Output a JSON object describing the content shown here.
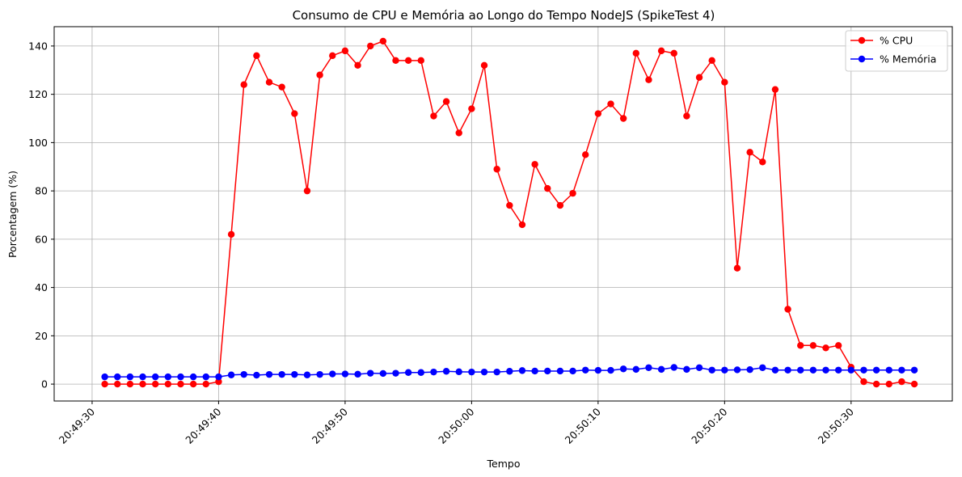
{
  "chart_data": {
    "type": "line",
    "title": "Consumo de CPU e Memória ao Longo do Tempo NodeJS (SpikeTest 4)",
    "xlabel": "Tempo",
    "ylabel": "Porcentagem (%)",
    "x_start": "20:49:31",
    "x_step_seconds": 1,
    "xlim": [
      "20:49:27",
      "20:50:38"
    ],
    "ylim": [
      -7,
      148
    ],
    "x_ticks": [
      "20:49:30",
      "20:49:40",
      "20:49:50",
      "20:50:00",
      "20:50:10",
      "20:50:20",
      "20:50:30"
    ],
    "y_ticks": [
      0,
      20,
      40,
      60,
      80,
      100,
      120,
      140
    ],
    "grid": true,
    "legend_position": "top-right",
    "series": [
      {
        "name": "% CPU",
        "color": "#ff0000",
        "values": [
          0,
          0,
          0,
          0,
          0,
          0,
          0,
          0,
          0,
          1,
          62,
          124,
          136,
          125,
          123,
          112,
          80,
          128,
          136,
          138,
          132,
          140,
          142,
          134,
          134,
          134,
          111,
          117,
          104,
          114,
          132,
          89,
          74,
          66,
          91,
          81,
          74,
          79,
          95,
          112,
          116,
          110,
          137,
          126,
          138,
          137,
          111,
          127,
          134,
          125,
          48,
          96,
          92,
          122,
          31,
          16,
          16,
          15,
          16,
          7,
          1,
          0,
          0,
          1,
          0
        ]
      },
      {
        "name": "% Memória",
        "color": "#0000ff",
        "values": [
          3,
          3,
          3,
          3,
          3,
          3,
          3,
          3,
          3,
          3,
          3.8,
          4,
          3.7,
          4,
          4,
          4,
          3.8,
          4,
          4.2,
          4.2,
          4.1,
          4.5,
          4.4,
          4.5,
          4.8,
          4.8,
          5,
          5.3,
          5.1,
          5,
          5,
          5,
          5.3,
          5.6,
          5.4,
          5.4,
          5.4,
          5.4,
          5.8,
          5.7,
          5.7,
          6.3,
          6.1,
          6.8,
          6.1,
          6.9,
          6.1,
          6.8,
          5.8,
          5.8,
          5.9,
          6,
          6.8,
          5.8,
          5.8,
          5.8,
          5.8,
          5.8,
          5.8,
          5.8,
          5.8,
          5.8,
          5.8,
          5.8,
          5.8
        ]
      }
    ]
  }
}
